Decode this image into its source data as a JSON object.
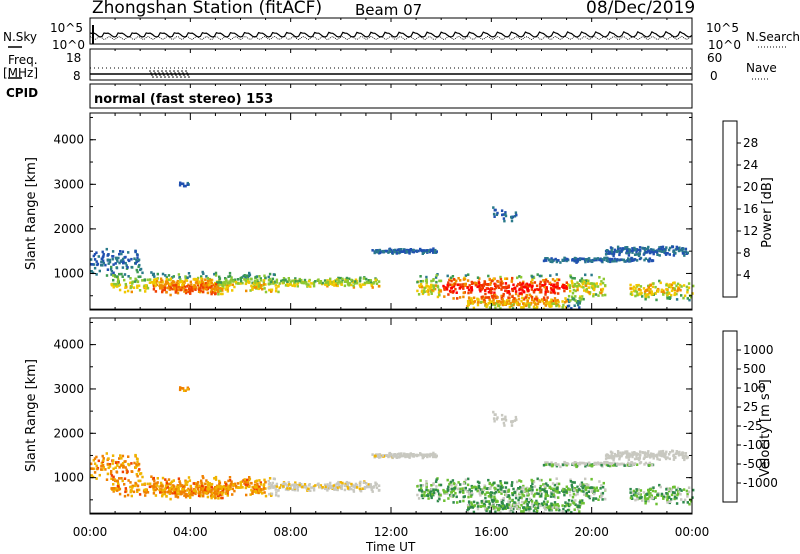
{
  "header": {
    "station": "Zhongshan Station (fitACF)",
    "beam": "Beam 07",
    "date": "08/Dec/2019"
  },
  "panel_labels": {
    "nsky": "N.Sky",
    "freq_line1": "Freq.",
    "freq_line2": "[MHz]",
    "cpid": "CPID",
    "nsearch": "N.Search",
    "nave": "Nave",
    "cpid_text": "normal (fast stereo) 153"
  },
  "small_axes": {
    "nsky_ticks": [
      "10^5",
      "10^0"
    ],
    "freq_ticks": [
      "18",
      "8"
    ],
    "nsearch_ticks": [
      "10^5",
      "10^0"
    ],
    "nave_ticks": [
      "60",
      "0"
    ]
  },
  "chart_data": [
    {
      "type": "heatmap",
      "name": "power",
      "ylabel": "Slant Range [km]",
      "xlabel": "Time UT",
      "x_ticks": [
        "00:00",
        "04:00",
        "08:00",
        "12:00",
        "16:00",
        "20:00",
        "00:00"
      ],
      "x_range_hours": [
        0,
        24
      ],
      "y_ticks": [
        1000,
        2000,
        3000,
        4000
      ],
      "y_range_km": [
        180,
        4600
      ],
      "colorbar_label": "Power [dB]",
      "colorbar_ticks": [
        4,
        8,
        12,
        16,
        20,
        24,
        28
      ],
      "colorbar_range": [
        0,
        32
      ],
      "colors": [
        "#1e1eff",
        "#2050b0",
        "#2a7a8a",
        "#3c9a50",
        "#8cc832",
        "#f0c800",
        "#f08c00",
        "#f04000",
        "#ff0000"
      ]
    },
    {
      "type": "heatmap",
      "name": "velocity",
      "ylabel": "Slant Range [km]",
      "xlabel": "Time UT",
      "x_ticks": [
        "00:00",
        "04:00",
        "08:00",
        "12:00",
        "16:00",
        "20:00",
        "00:00"
      ],
      "x_range_hours": [
        0,
        24
      ],
      "y_ticks": [
        1000,
        2000,
        3000,
        4000
      ],
      "y_range_km": [
        180,
        4600
      ],
      "colorbar_label": "Velocity [m s",
      "colorbar_label_sup": "-1",
      "colorbar_label_end": "]",
      "colorbar_ticks": [
        "1000",
        "500",
        "100",
        "25",
        "-25",
        "-100",
        "-500",
        "-1000"
      ],
      "colors": [
        "#2040c0",
        "#3a7ab0",
        "#2e8a4a",
        "#6cc032",
        "#c8c8c0",
        "#f0b400",
        "#f08000",
        "#f04000",
        "#ff0000"
      ]
    }
  ],
  "xaxis_title": "Time UT"
}
